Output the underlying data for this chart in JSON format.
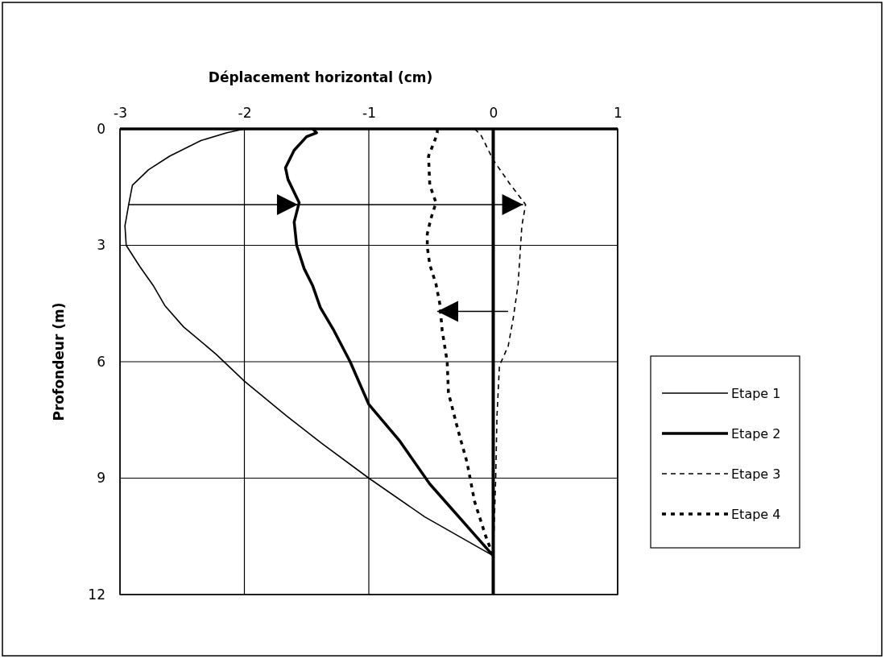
{
  "chart_data": {
    "type": "line",
    "xlabel": "Déplacement horizontal (cm)",
    "ylabel": "Profondeur (m)",
    "xlim": [
      -3,
      1
    ],
    "xticks": [
      -3,
      -2,
      -1,
      0,
      1
    ],
    "ylim": [
      12,
      0
    ],
    "yticks": [
      0,
      3,
      6,
      9,
      12
    ],
    "grid": true,
    "legend": "right",
    "marker": "none",
    "ref_lines": [
      {
        "axis": "x",
        "value": 0,
        "color": "#000000",
        "line_style": "solid"
      }
    ],
    "series": [
      {
        "name": "Etape 1",
        "color": "#000000",
        "line_style": "solid",
        "x": [
          -2.0,
          -2.14,
          -2.35,
          -2.6,
          -2.77,
          -2.9,
          -2.93,
          -2.96,
          -2.95,
          -2.84,
          -2.73,
          -2.64,
          -2.49,
          -2.23,
          -2.0,
          -1.66,
          -1.38,
          -1.0,
          -0.55,
          0
        ],
        "values": [
          0,
          0.1,
          0.3,
          0.7,
          1.05,
          1.45,
          1.95,
          2.5,
          3.0,
          3.55,
          4.05,
          4.55,
          5.1,
          5.8,
          6.5,
          7.4,
          8.1,
          9.0,
          10.0,
          11.0
        ]
      },
      {
        "name": "Etape 2",
        "color": "#000000",
        "line_style": "solid",
        "x": [
          -1.45,
          -1.42,
          -1.5,
          -1.6,
          -1.67,
          -1.65,
          -1.56,
          -1.6,
          -1.58,
          -1.52,
          -1.45,
          -1.39,
          -1.28,
          -1.15,
          -1.0,
          -0.75,
          -0.51,
          0
        ],
        "values": [
          0,
          0.1,
          0.2,
          0.55,
          1.0,
          1.3,
          1.9,
          2.4,
          3.0,
          3.6,
          4.05,
          4.6,
          5.2,
          6.0,
          7.1,
          8.05,
          9.15,
          11.0
        ]
      },
      {
        "name": "Etape 3",
        "color": "#000000",
        "line_style": "dashed",
        "x": [
          -0.15,
          -0.1,
          0.0,
          0.13,
          0.26,
          0.23,
          0.22,
          0.2,
          0.16,
          0.12,
          0.05,
          0.03,
          0.02,
          0
        ],
        "values": [
          0,
          0.15,
          0.8,
          1.4,
          1.95,
          2.5,
          3.0,
          4.0,
          4.9,
          5.6,
          6.1,
          7.4,
          9.0,
          11.0
        ]
      },
      {
        "name": "Etape 4",
        "color": "#000000",
        "line_style": "dotted",
        "x": [
          -0.45,
          -0.45,
          -0.47,
          -0.52,
          -0.51,
          -0.46,
          -0.5,
          -0.53,
          -0.53,
          -0.51,
          -0.46,
          -0.43,
          -0.41,
          -0.37,
          -0.36,
          -0.28,
          -0.21,
          -0.15,
          -0.06,
          0
        ],
        "values": [
          0,
          0.1,
          0.3,
          0.7,
          1.45,
          1.9,
          2.3,
          2.7,
          3.05,
          3.5,
          4.0,
          4.5,
          5.2,
          6.0,
          6.8,
          7.8,
          8.6,
          9.6,
          10.5,
          11.0
        ]
      }
    ]
  }
}
